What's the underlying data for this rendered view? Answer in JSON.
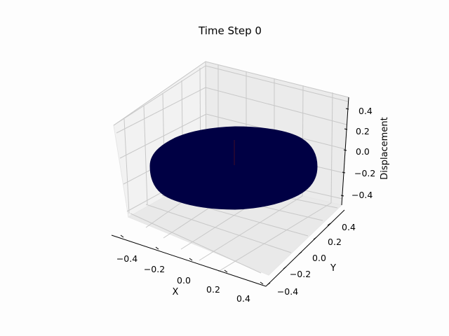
{
  "chart_data": {
    "type": "surface",
    "title": "Time Step 0",
    "xlabel": "X",
    "ylabel": "Y",
    "zlabel": "Displacement",
    "x_ticks": [
      "−0.4",
      "−0.2",
      "0.0",
      "0.2",
      "0.4"
    ],
    "y_ticks": [
      "−0.4",
      "−0.2",
      "0.0",
      "0.2",
      "0.4"
    ],
    "z_ticks": [
      "−0.4",
      "−0.2",
      "0.0",
      "0.2",
      "0.4"
    ],
    "xlim": [
      -0.5,
      0.5
    ],
    "ylim": [
      -0.5,
      0.5
    ],
    "zlim": [
      -0.5,
      0.5
    ],
    "surface": {
      "shape": "disk",
      "radius": 0.5,
      "displacement": 0.0,
      "color": "#000044"
    },
    "grid": true
  },
  "colors": {
    "background": "#fdfdfd",
    "surface": "#000044",
    "center_mark": "#2a0830"
  }
}
